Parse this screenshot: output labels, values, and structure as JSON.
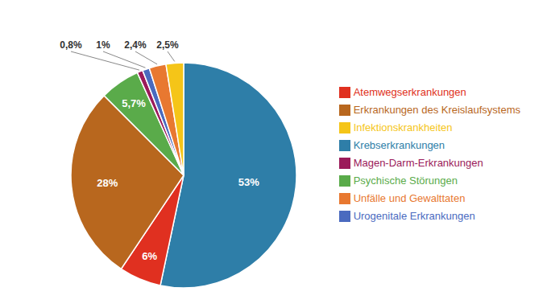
{
  "chart_data": {
    "type": "pie",
    "categories": [
      "Krebserkrankungen",
      "Atemwegserkrankungen",
      "Erkrankungen des Kreislaufsystems",
      "Psychische Störungen",
      "Magen-Darm-Erkrankungen",
      "Urogenitale Erkrankungen",
      "Unfälle und Gewalttaten",
      "Infektionskrankheiten"
    ],
    "values": [
      53,
      6,
      28,
      5.7,
      0.8,
      1.0,
      2.4,
      2.5
    ],
    "value_labels": [
      "53%",
      "6%",
      "28%",
      "5,7%",
      "0,8%",
      "1%",
      "2,4%",
      "2,5%"
    ],
    "colors": [
      "#2e7ea8",
      "#e03020",
      "#b8671e",
      "#5aab4a",
      "#9b1a5a",
      "#4a6abf",
      "#e87830",
      "#f5c518"
    ],
    "data_labels": true,
    "legend": "right"
  }
}
